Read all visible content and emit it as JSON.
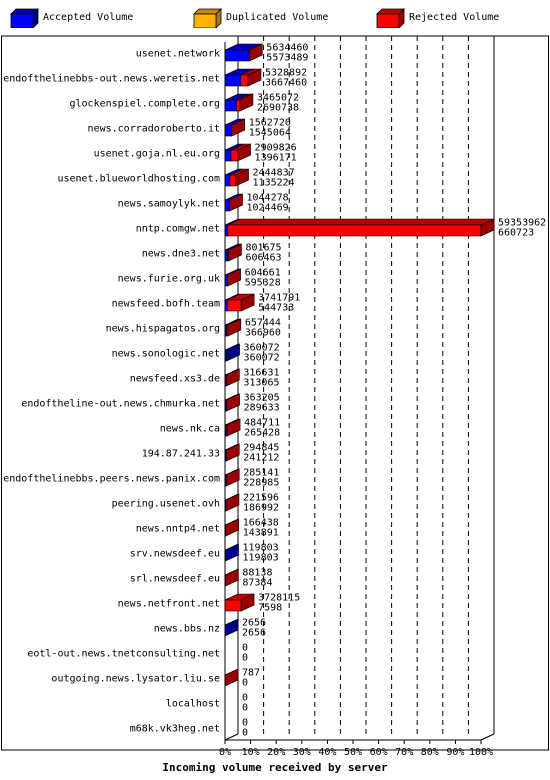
{
  "legend": {
    "accepted": {
      "label": "Accepted Volume",
      "color": "#0000ff"
    },
    "duplicated": {
      "label": "Duplicated Volume",
      "color": "#ffb300"
    },
    "rejected": {
      "label": "Rejected Volume",
      "color": "#ff0000"
    }
  },
  "chart_data": {
    "type": "bar",
    "orientation": "horizontal",
    "stacked": true,
    "xlabel": "Incoming volume received by server",
    "x_ticks": [
      "0%",
      "10%",
      "20%",
      "30%",
      "40%",
      "50%",
      "60%",
      "70%",
      "80%",
      "90%",
      "100%"
    ],
    "xlim": [
      0,
      100
    ],
    "max_total": 59353962,
    "servers": [
      {
        "name": "usenet.network",
        "total": "5634460",
        "accepted": "5573489",
        "acc": 5573489,
        "dup": 0,
        "rej": 60971
      },
      {
        "name": "endofthelinebbs-out.news.weretis.net",
        "total": "5328892",
        "accepted": "3667460",
        "acc": 3667460,
        "dup": 0,
        "rej": 1661432
      },
      {
        "name": "glockenspiel.complete.org",
        "total": "3465072",
        "accepted": "2690738",
        "acc": 2690738,
        "dup": 0,
        "rej": 774334
      },
      {
        "name": "news.corradoroberto.it",
        "total": "1562720",
        "accepted": "1545064",
        "acc": 1545064,
        "dup": 0,
        "rej": 17656
      },
      {
        "name": "usenet.goja.nl.eu.org",
        "total": "2909826",
        "accepted": "1396171",
        "acc": 1396171,
        "dup": 0,
        "rej": 1513655
      },
      {
        "name": "usenet.blueworldhosting.com",
        "total": "2444837",
        "accepted": "1135224",
        "acc": 1135224,
        "dup": 0,
        "rej": 1309613
      },
      {
        "name": "news.samoylyk.net",
        "total": "1044278",
        "accepted": "1024469",
        "acc": 1024469,
        "dup": 0,
        "rej": 19809
      },
      {
        "name": "nntp.comgw.net",
        "total": "59353962",
        "accepted": "660723",
        "acc": 660723,
        "dup": 0,
        "rej": 58693239
      },
      {
        "name": "news.dne3.net",
        "total": "801675",
        "accepted": "606463",
        "acc": 606463,
        "dup": 0,
        "rej": 195212
      },
      {
        "name": "news.furie.org.uk",
        "total": "604661",
        "accepted": "595328",
        "acc": 595328,
        "dup": 0,
        "rej": 9333
      },
      {
        "name": "newsfeed.bofh.team",
        "total": "3741791",
        "accepted": "544733",
        "acc": 544733,
        "dup": 0,
        "rej": 3197058
      },
      {
        "name": "news.hispagatos.org",
        "total": "657444",
        "accepted": "366960",
        "acc": 366960,
        "dup": 0,
        "rej": 290484
      },
      {
        "name": "news.sonologic.net",
        "total": "360072",
        "accepted": "360072",
        "acc": 360072,
        "dup": 0,
        "rej": 0
      },
      {
        "name": "newsfeed.xs3.de",
        "total": "316631",
        "accepted": "313065",
        "acc": 313065,
        "dup": 0,
        "rej": 3566
      },
      {
        "name": "endoftheline-out.news.chmurka.net",
        "total": "363205",
        "accepted": "289633",
        "acc": 289633,
        "dup": 0,
        "rej": 73572
      },
      {
        "name": "news.nk.ca",
        "total": "484711",
        "accepted": "265428",
        "acc": 265428,
        "dup": 0,
        "rej": 219283
      },
      {
        "name": "194.87.241.33",
        "total": "294845",
        "accepted": "241212",
        "acc": 241212,
        "dup": 0,
        "rej": 53633
      },
      {
        "name": "endofthelinebbs.peers.news.panix.com",
        "total": "285141",
        "accepted": "228985",
        "acc": 228985,
        "dup": 0,
        "rej": 56156
      },
      {
        "name": "peering.usenet.ovh",
        "total": "221596",
        "accepted": "186992",
        "acc": 186992,
        "dup": 0,
        "rej": 34604
      },
      {
        "name": "news.nntp4.net",
        "total": "166438",
        "accepted": "143891",
        "acc": 143891,
        "dup": 0,
        "rej": 22547
      },
      {
        "name": "srv.newsdeef.eu",
        "total": "119803",
        "accepted": "119803",
        "acc": 119803,
        "dup": 0,
        "rej": 0
      },
      {
        "name": "srl.newsdeef.eu",
        "total": "88138",
        "accepted": "87384",
        "acc": 87384,
        "dup": 0,
        "rej": 754
      },
      {
        "name": "news.netfront.net",
        "total": "3728115",
        "accepted": "7598",
        "acc": 7598,
        "dup": 0,
        "rej": 3720517
      },
      {
        "name": "news.bbs.nz",
        "total": "2656",
        "accepted": "2656",
        "acc": 2656,
        "dup": 0,
        "rej": 0
      },
      {
        "name": "eotl-out.news.tnetconsulting.net",
        "total": "0",
        "accepted": "0",
        "acc": 0,
        "dup": 0,
        "rej": 0
      },
      {
        "name": "outgoing.news.lysator.liu.se",
        "total": "787",
        "accepted": "0",
        "acc": 0,
        "dup": 0,
        "rej": 787
      },
      {
        "name": "localhost",
        "total": "0",
        "accepted": "0",
        "acc": 0,
        "dup": 0,
        "rej": 0
      },
      {
        "name": "m68k.vk3heg.net",
        "total": "0",
        "accepted": "0",
        "acc": 0,
        "dup": 0,
        "rej": 0
      }
    ]
  }
}
